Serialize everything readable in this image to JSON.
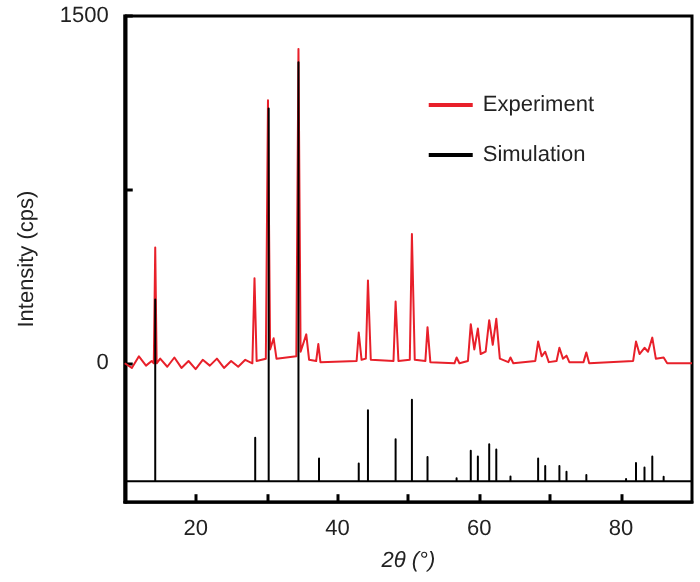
{
  "chart_data": {
    "type": "line",
    "xlabel": "2$_{}$θ (°)",
    "ylabel": "Intensity (cps)",
    "xlim": [
      10,
      90
    ],
    "xticks": [
      20,
      {
        "value": 30,
        "label": null
      },
      40,
      {
        "value": 50,
        "label": null
      },
      60,
      {
        "value": 70,
        "label": null
      },
      80
    ],
    "ylim": [
      -600,
      1500
    ],
    "yticks": [
      0,
      {
        "value": 750,
        "label": null
      },
      1500
    ],
    "grid": false,
    "legend": "top right",
    "marker": "none",
    "line_style": "solid",
    "series": [
      {
        "name": "Experiment",
        "color": "#e8202a",
        "x": [
          10,
          11,
          12,
          13,
          13.8,
          14.1,
          14.3,
          14.5,
          15,
          16,
          17,
          18,
          19,
          20,
          21,
          22,
          23,
          24,
          25,
          26,
          27,
          28,
          28.3,
          28.6,
          29.9,
          30.2,
          30.5,
          31,
          31.4,
          34.2,
          34.5,
          34.8,
          35.6,
          36,
          37,
          37.3,
          37.6,
          42.7,
          43,
          43.4,
          44,
          44.3,
          44.7,
          47.9,
          48.2,
          48.6,
          50.2,
          50.5,
          50.9,
          52.4,
          52.7,
          53.1,
          56.5,
          56.8,
          57.2,
          58.4,
          58.8,
          59.3,
          59.8,
          60.2,
          60.9,
          61.4,
          61.9,
          62.4,
          62.9,
          64.1,
          64.4,
          64.8,
          67.9,
          68.3,
          68.8,
          69.3,
          69.8,
          70.9,
          71.3,
          71.8,
          72.3,
          72.7,
          74.7,
          75.1,
          75.5,
          81.7,
          82.1,
          82.6,
          83.3,
          83.8,
          84.4,
          84.9,
          86,
          86.5,
          90
        ],
        "values": [
          0,
          -20,
          30,
          -10,
          10,
          0,
          500,
          0,
          20,
          -15,
          25,
          -20,
          10,
          -25,
          15,
          -10,
          20,
          -20,
          10,
          -15,
          15,
          0,
          367,
          10,
          20,
          1136,
          60,
          108,
          20,
          30,
          1358,
          50,
          125,
          15,
          10,
          83,
          5,
          10,
          133,
          15,
          20,
          358,
          15,
          10,
          267,
          10,
          15,
          558,
          15,
          10,
          156,
          5,
          0,
          25,
          0,
          10,
          169,
          60,
          150,
          40,
          50,
          186,
          80,
          192,
          20,
          5,
          25,
          0,
          10,
          94,
          30,
          50,
          5,
          10,
          67,
          20,
          33,
          5,
          5,
          47,
          0,
          10,
          94,
          40,
          67,
          50,
          111,
          20,
          25,
          0,
          0
        ]
      },
      {
        "name": "Simulation",
        "color": "#000000",
        "x": [
          10,
          14.3,
          14.3,
          14.3,
          28.4,
          28.4,
          28.4,
          30.3,
          30.3,
          30.3,
          34.5,
          34.5,
          34.5,
          37.4,
          37.4,
          37.4,
          43,
          43,
          43,
          44.3,
          44.3,
          44.3,
          48.2,
          48.2,
          48.2,
          50.5,
          50.5,
          50.5,
          52.7,
          52.7,
          52.7,
          56.8,
          56.8,
          56.8,
          58.8,
          58.8,
          58.8,
          59.8,
          59.8,
          59.8,
          61.4,
          61.4,
          61.4,
          62.4,
          62.4,
          62.4,
          64.4,
          64.4,
          64.4,
          68.3,
          68.3,
          68.3,
          69.3,
          69.3,
          69.3,
          71.3,
          71.3,
          71.3,
          72.3,
          72.3,
          72.3,
          75.1,
          75.1,
          75.1,
          80.7,
          80.7,
          80.7,
          82.1,
          82.1,
          82.1,
          83.3,
          83.3,
          83.3,
          84.4,
          84.4,
          84.4,
          86,
          86,
          86,
          90
        ],
        "values": [
          -510,
          -510,
          275,
          -510,
          -510,
          -322,
          -510,
          -510,
          1100,
          -510,
          -510,
          1300,
          -510,
          -510,
          -411,
          -510,
          -510,
          -433,
          -510,
          -510,
          -203,
          -510,
          -510,
          -328,
          -510,
          -510,
          -158,
          -510,
          -510,
          -405,
          -510,
          -510,
          -497,
          -510,
          -510,
          -378,
          -510,
          -510,
          -403,
          -510,
          -510,
          -350,
          -510,
          -510,
          -372,
          -510,
          -510,
          -489,
          -510,
          -510,
          -411,
          -510,
          -510,
          -444,
          -510,
          -510,
          -444,
          -510,
          -510,
          -469,
          -510,
          -510,
          -483,
          -510,
          -510,
          -500,
          -510,
          -510,
          -431,
          -510,
          -510,
          -450,
          -510,
          -510,
          -403,
          -510,
          -510,
          -490,
          -510,
          -510
        ]
      }
    ]
  }
}
